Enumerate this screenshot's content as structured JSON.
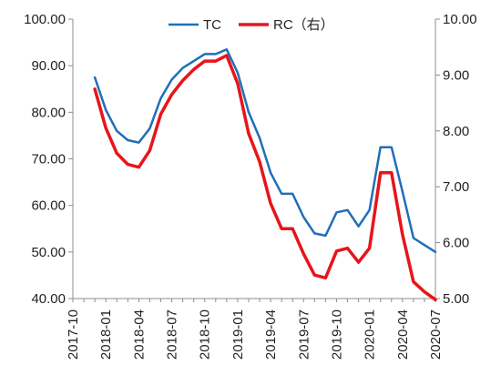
{
  "chart_data": {
    "type": "line",
    "grid": false,
    "legend_position": "top-center",
    "x_tick_labels": [
      "2017-10",
      "2018-01",
      "2018-04",
      "2018-07",
      "2018-10",
      "2019-01",
      "2019-04",
      "2019-07",
      "2019-10",
      "2020-01",
      "2020-04",
      "2020-07"
    ],
    "x_start": "2017-10",
    "x_end": "2020-07",
    "ylim_left": [
      40,
      100
    ],
    "y_ticks_left": [
      "40.00",
      "50.00",
      "60.00",
      "70.00",
      "80.00",
      "90.00",
      "100.00"
    ],
    "ylim_right": [
      5,
      10
    ],
    "y_ticks_right": [
      "5.00",
      "6.00",
      "7.00",
      "8.00",
      "9.00",
      "10.00"
    ],
    "series": [
      {
        "name": "TC",
        "axis": "left",
        "color": "#1f6fb8",
        "x": [
          "2017-12",
          "2018-01",
          "2018-02",
          "2018-03",
          "2018-04",
          "2018-05",
          "2018-06",
          "2018-07",
          "2018-08",
          "2018-09",
          "2018-10",
          "2018-11",
          "2018-12",
          "2019-01",
          "2019-02",
          "2019-03",
          "2019-04",
          "2019-05",
          "2019-06",
          "2019-07",
          "2019-08",
          "2019-09",
          "2019-10",
          "2019-11",
          "2019-12",
          "2020-01",
          "2020-02",
          "2020-03",
          "2020-04",
          "2020-05",
          "2020-06",
          "2020-07"
        ],
        "values": [
          87.5,
          80.5,
          76.0,
          74.0,
          73.5,
          76.5,
          83.0,
          87.0,
          89.5,
          91.0,
          92.5,
          92.5,
          93.5,
          88.5,
          80.0,
          74.5,
          67.0,
          62.5,
          62.5,
          57.5,
          54.0,
          53.5,
          58.5,
          59.0,
          55.5,
          59.0,
          72.5,
          72.5,
          63.0,
          53.0,
          51.5,
          50.0
        ]
      },
      {
        "name": "RC（右）",
        "axis": "right",
        "color": "#e8141b",
        "x": [
          "2017-12",
          "2018-01",
          "2018-02",
          "2018-03",
          "2018-04",
          "2018-05",
          "2018-06",
          "2018-07",
          "2018-08",
          "2018-09",
          "2018-10",
          "2018-11",
          "2018-12",
          "2019-01",
          "2019-02",
          "2019-03",
          "2019-04",
          "2019-05",
          "2019-06",
          "2019-07",
          "2019-08",
          "2019-09",
          "2019-10",
          "2019-11",
          "2019-12",
          "2020-01",
          "2020-02",
          "2020-03",
          "2020-04",
          "2020-05",
          "2020-06",
          "2020-07"
        ],
        "values": [
          8.75,
          8.05,
          7.6,
          7.4,
          7.35,
          7.65,
          8.3,
          8.65,
          8.9,
          9.1,
          9.25,
          9.25,
          9.35,
          8.85,
          7.95,
          7.45,
          6.7,
          6.25,
          6.25,
          5.8,
          5.42,
          5.37,
          5.85,
          5.9,
          5.65,
          5.9,
          7.25,
          7.25,
          6.15,
          5.3,
          5.12,
          4.98
        ]
      }
    ]
  }
}
